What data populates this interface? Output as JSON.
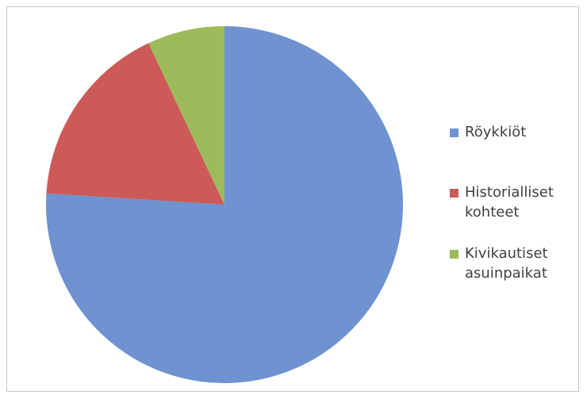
{
  "chart_data": {
    "type": "pie",
    "title": "",
    "slices": [
      {
        "label": "Röykkiöt",
        "value": 76,
        "color": "#6f92d0"
      },
      {
        "label": "Historialliset kohteet",
        "value": 17,
        "color": "#cc5a59"
      },
      {
        "label": "Kivikautiset asuinpaikat",
        "value": 7,
        "color": "#9dbb5b"
      }
    ],
    "legend_position": "right"
  },
  "legend": {
    "items": [
      {
        "label": "Röykkiöt",
        "color": "#6f92d0"
      },
      {
        "label": "Historialliset kohteet",
        "color": "#cc5a59"
      },
      {
        "label": "Kivikautiset asuinpaikat",
        "color": "#9dbb5b"
      }
    ]
  }
}
